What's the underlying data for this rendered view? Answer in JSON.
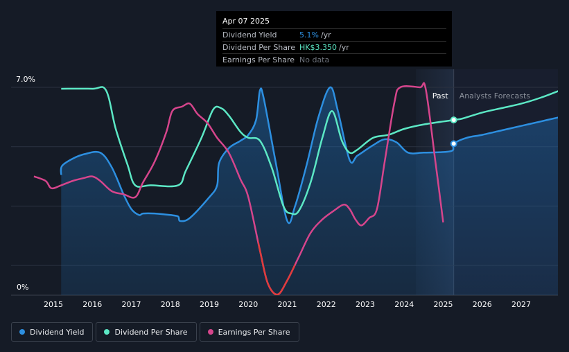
{
  "tooltip": {
    "date": "Apr 07 2025",
    "rows": [
      {
        "name": "Dividend Yield",
        "value": "5.1%",
        "unit": "/yr"
      },
      {
        "name": "Dividend Per Share",
        "value": "HK$3.350",
        "unit": "/yr"
      },
      {
        "name": "Earnings Per Share",
        "value": "No data",
        "unit": ""
      }
    ]
  },
  "colors": {
    "dividend_yield": "#2d8fe0",
    "dividend_per_share": "#5ce8c5",
    "earnings_per_share": "#d6458c",
    "eps_negative": "#e03c3c",
    "background": "#151b26"
  },
  "legend": [
    {
      "label": "Dividend Yield",
      "color": "#2d8fe0"
    },
    {
      "label": "Dividend Per Share",
      "color": "#5ce8c5"
    },
    {
      "label": "Earnings Per Share",
      "color": "#d6458c"
    }
  ],
  "chart_data": {
    "type": "line",
    "y_tick_labels": [
      "7.0%",
      "0%"
    ],
    "ylim": [
      0,
      7.0
    ],
    "xlim": [
      2014.0,
      2028.0
    ],
    "x_tick_labels": [
      "2015",
      "2016",
      "2017",
      "2018",
      "2019",
      "2020",
      "2021",
      "2022",
      "2023",
      "2024",
      "2025",
      "2026",
      "2027"
    ],
    "grid": true,
    "regions": {
      "past_label": "Past",
      "forecast_label": "Analysts Forecasts",
      "past_start": 2024.3,
      "forecast_start": 2025.27
    },
    "series": [
      {
        "name": "Dividend Yield",
        "points": [
          [
            2015.2,
            4.05
          ],
          [
            2015.22,
            4.35
          ],
          [
            2015.5,
            4.6
          ],
          [
            2015.8,
            4.75
          ],
          [
            2016.2,
            4.8
          ],
          [
            2016.5,
            4.3
          ],
          [
            2016.8,
            3.4
          ],
          [
            2017.0,
            2.9
          ],
          [
            2017.2,
            2.7
          ],
          [
            2017.3,
            2.75
          ],
          [
            2017.6,
            2.75
          ],
          [
            2018.0,
            2.7
          ],
          [
            2018.2,
            2.65
          ],
          [
            2018.25,
            2.5
          ],
          [
            2018.5,
            2.6
          ],
          [
            2019.0,
            3.3
          ],
          [
            2019.2,
            3.7
          ],
          [
            2019.25,
            4.45
          ],
          [
            2019.5,
            4.95
          ],
          [
            2019.8,
            5.2
          ],
          [
            2020.0,
            5.4
          ],
          [
            2020.2,
            5.9
          ],
          [
            2020.3,
            6.9
          ],
          [
            2020.4,
            6.6
          ],
          [
            2020.7,
            4.5
          ],
          [
            2021.0,
            2.5
          ],
          [
            2021.2,
            3.0
          ],
          [
            2021.5,
            4.4
          ],
          [
            2021.8,
            6.0
          ],
          [
            2022.1,
            7.0
          ],
          [
            2022.3,
            6.2
          ],
          [
            2022.6,
            4.55
          ],
          [
            2022.8,
            4.7
          ],
          [
            2023.2,
            5.05
          ],
          [
            2023.5,
            5.25
          ],
          [
            2023.8,
            5.15
          ],
          [
            2024.1,
            4.8
          ],
          [
            2024.5,
            4.8
          ],
          [
            2025.2,
            4.85
          ],
          [
            2025.27,
            5.1
          ],
          [
            2025.6,
            5.3
          ],
          [
            2026.0,
            5.4
          ],
          [
            2026.5,
            5.55
          ],
          [
            2027.0,
            5.7
          ],
          [
            2027.5,
            5.85
          ],
          [
            2028.0,
            6.0
          ]
        ]
      },
      {
        "name": "Dividend Per Share",
        "points": [
          [
            2015.2,
            6.95
          ],
          [
            2016.0,
            6.95
          ],
          [
            2016.35,
            6.9
          ],
          [
            2016.6,
            5.6
          ],
          [
            2016.9,
            4.4
          ],
          [
            2017.1,
            3.7
          ],
          [
            2017.5,
            3.7
          ],
          [
            2018.2,
            3.7
          ],
          [
            2018.4,
            4.2
          ],
          [
            2018.8,
            5.3
          ],
          [
            2019.1,
            6.25
          ],
          [
            2019.3,
            6.3
          ],
          [
            2019.5,
            6.05
          ],
          [
            2019.8,
            5.5
          ],
          [
            2020.0,
            5.3
          ],
          [
            2020.3,
            5.2
          ],
          [
            2020.6,
            4.3
          ],
          [
            2020.9,
            3.0
          ],
          [
            2021.1,
            2.75
          ],
          [
            2021.3,
            2.85
          ],
          [
            2021.6,
            3.8
          ],
          [
            2021.9,
            5.3
          ],
          [
            2022.15,
            6.2
          ],
          [
            2022.4,
            5.2
          ],
          [
            2022.6,
            4.8
          ],
          [
            2022.8,
            4.9
          ],
          [
            2023.2,
            5.3
          ],
          [
            2023.6,
            5.4
          ],
          [
            2024.0,
            5.6
          ],
          [
            2024.5,
            5.75
          ],
          [
            2025.27,
            5.9
          ],
          [
            2025.5,
            5.95
          ],
          [
            2026.0,
            6.15
          ],
          [
            2026.5,
            6.3
          ],
          [
            2027.0,
            6.45
          ],
          [
            2027.5,
            6.65
          ],
          [
            2028.0,
            6.9
          ]
        ]
      },
      {
        "name": "Earnings Per Share",
        "points": [
          [
            2014.5,
            4.0
          ],
          [
            2014.8,
            3.85
          ],
          [
            2014.95,
            3.6
          ],
          [
            2015.2,
            3.7
          ],
          [
            2015.5,
            3.85
          ],
          [
            2015.8,
            3.95
          ],
          [
            2016.0,
            4.0
          ],
          [
            2016.2,
            3.85
          ],
          [
            2016.5,
            3.5
          ],
          [
            2016.8,
            3.4
          ],
          [
            2017.1,
            3.3
          ],
          [
            2017.3,
            3.8
          ],
          [
            2017.6,
            4.5
          ],
          [
            2017.9,
            5.5
          ],
          [
            2018.05,
            6.2
          ],
          [
            2018.3,
            6.35
          ],
          [
            2018.5,
            6.45
          ],
          [
            2018.7,
            6.1
          ],
          [
            2018.95,
            5.8
          ],
          [
            2019.2,
            5.3
          ],
          [
            2019.5,
            4.8
          ],
          [
            2019.8,
            3.9
          ],
          [
            2020.0,
            3.3
          ],
          [
            2020.3,
            1.5
          ],
          [
            2020.5,
            0.4
          ],
          [
            2020.75,
            0.02
          ],
          [
            2021.0,
            0.5
          ],
          [
            2021.3,
            1.3
          ],
          [
            2021.6,
            2.1
          ],
          [
            2021.9,
            2.55
          ],
          [
            2022.2,
            2.85
          ],
          [
            2022.45,
            3.05
          ],
          [
            2022.6,
            2.9
          ],
          [
            2022.75,
            2.55
          ],
          [
            2022.9,
            2.35
          ],
          [
            2023.1,
            2.6
          ],
          [
            2023.3,
            2.9
          ],
          [
            2023.5,
            4.5
          ],
          [
            2023.75,
            6.5
          ],
          [
            2023.9,
            7.0
          ],
          [
            2024.4,
            7.0
          ],
          [
            2024.55,
            6.95
          ],
          [
            2024.8,
            4.5
          ],
          [
            2025.0,
            2.45
          ]
        ]
      }
    ]
  }
}
